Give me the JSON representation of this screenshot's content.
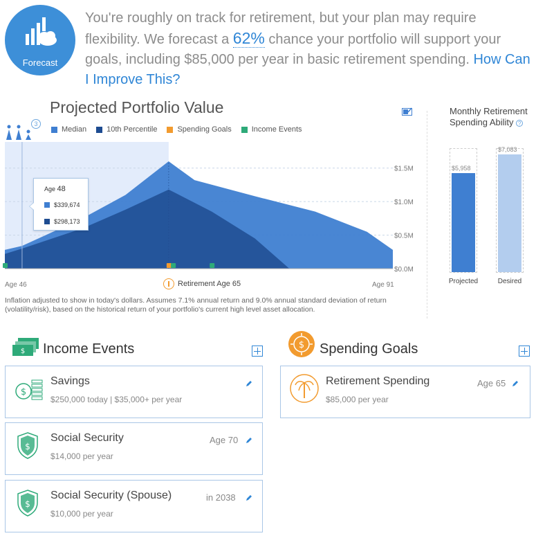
{
  "header": {
    "badge_label": "Forecast",
    "summary_pre": "You're roughly on track for retirement, but your plan may require flexibility. We forecast a ",
    "summary_pct": "62%",
    "summary_post": " chance your portfolio will support your goals, including $85,000 per year in basic retirement spending. ",
    "improve_link": "How Can I Improve This?"
  },
  "chart": {
    "info_badge": "3",
    "legend": [
      {
        "label": "Median",
        "color": "#3f7fd1"
      },
      {
        "label": "10th Percentile",
        "color": "#1e4c91"
      },
      {
        "label": "Spending Goals",
        "color": "#f29b2f"
      },
      {
        "label": "Income Events",
        "color": "#2eaa79"
      }
    ],
    "age_start": "Age 46",
    "age_end": "Age 91",
    "retirement_label": "Retirement Age 65",
    "footnote": "Inflation adjusted to show in today's dollars. Assumes 7.1% annual return and 9.0% annual standard deviation of return (volatility/risk), based on the historical return of your portfolio's current high level asset allocation.",
    "tooltip": {
      "age_prefix": "Age",
      "age": "48",
      "median": "$339,674",
      "p10": "$298,173"
    }
  },
  "chart_data": {
    "type": "area",
    "title": "Projected Portfolio Value",
    "x": [
      46,
      48,
      65,
      70,
      91
    ],
    "xlabel": "",
    "ylabel": "",
    "yticks": [
      "$0.0M",
      "$0.5M",
      "$1.0M",
      "$1.5M"
    ],
    "ylim": [
      0,
      1.6
    ],
    "series": [
      {
        "name": "Median",
        "color": "#3f7fd1",
        "points": [
          [
            46,
            0.28
          ],
          [
            48,
            0.34
          ],
          [
            55,
            0.75
          ],
          [
            60,
            1.1
          ],
          [
            65,
            1.6
          ],
          [
            68,
            1.32
          ],
          [
            75,
            1.08
          ],
          [
            82,
            0.85
          ],
          [
            88,
            0.55
          ],
          [
            91,
            0.28
          ]
        ]
      },
      {
        "name": "10th Percentile",
        "color": "#1e4c91",
        "points": [
          [
            46,
            0.22
          ],
          [
            48,
            0.3
          ],
          [
            55,
            0.6
          ],
          [
            60,
            0.88
          ],
          [
            65,
            1.18
          ],
          [
            70,
            0.85
          ],
          [
            75,
            0.45
          ],
          [
            79,
            0.0
          ]
        ]
      }
    ],
    "events": {
      "spending_goals_age": [
        65
      ],
      "income_events_age": [
        46,
        65.5,
        70
      ]
    }
  },
  "monthly": {
    "title": "Monthly Retirement Spending Ability",
    "info": "?",
    "bars": [
      {
        "label": "Projected",
        "value": 5958,
        "value_text": "$5,958",
        "color": "#3f7fd1"
      },
      {
        "label": "Desired",
        "value": 7083,
        "value_text": "$7,083",
        "color": "#b3cdee"
      }
    ],
    "max": 7400
  },
  "income_section": {
    "title": "Income Events",
    "cards": [
      {
        "title": "Savings",
        "sub": "$250,000 today | $35,000+ per year",
        "meta": ""
      },
      {
        "title": "Social Security",
        "sub": "$14,000 per year",
        "meta": "Age 70"
      },
      {
        "title": "Social Security (Spouse)",
        "sub": "$10,000 per year",
        "meta": "in 2038"
      }
    ]
  },
  "spending_section": {
    "title": "Spending Goals",
    "cards": [
      {
        "title": "Retirement Spending",
        "sub": "$85,000 per year",
        "meta": "Age 65"
      }
    ]
  }
}
